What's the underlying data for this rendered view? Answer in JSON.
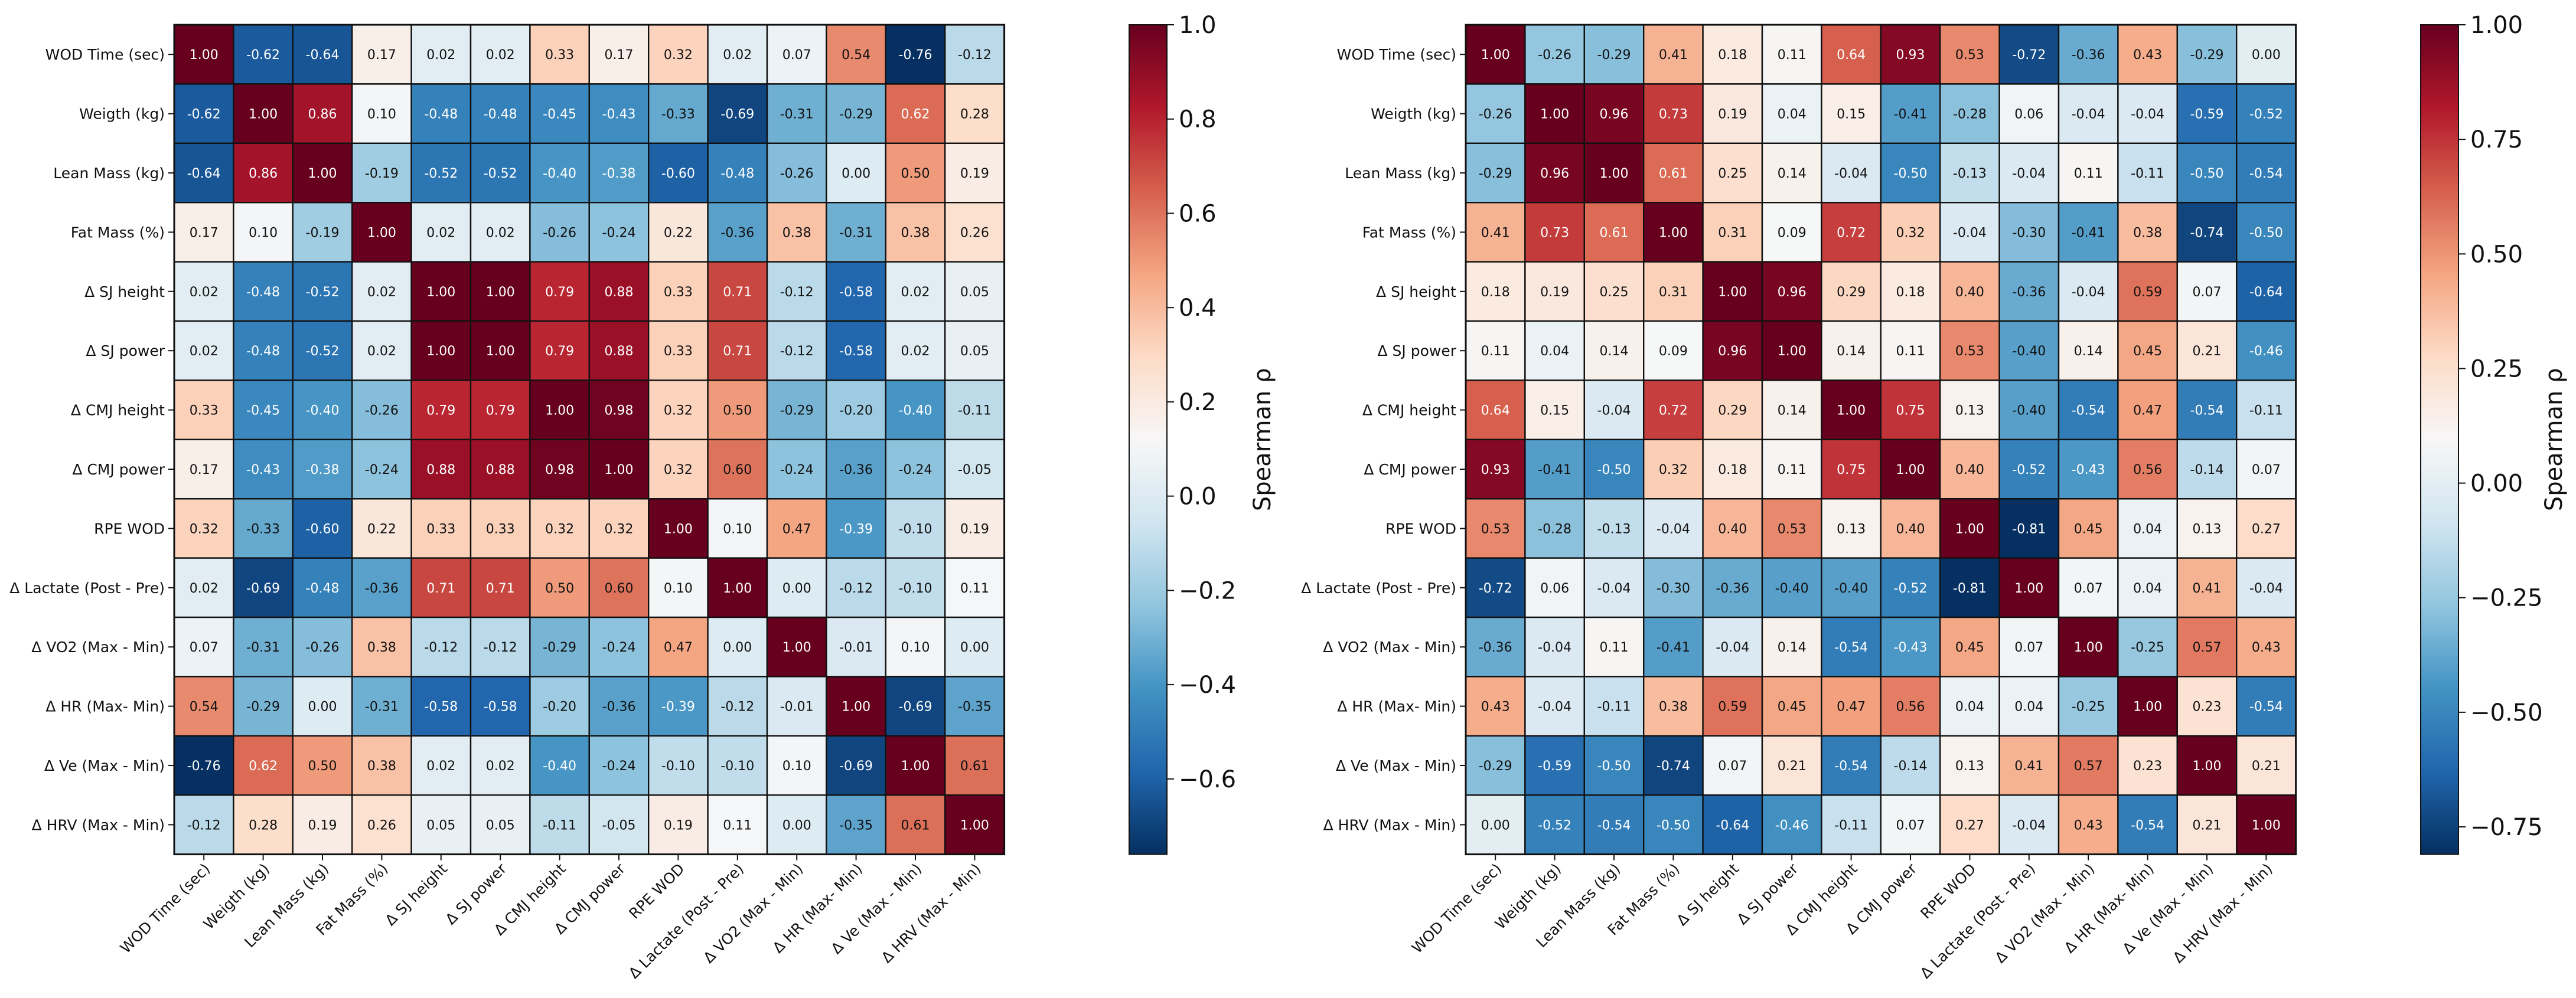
{
  "chart_data": [
    {
      "type": "heatmap",
      "title": "",
      "colorbar_label": "Spearman ρ",
      "colorbar_ticks": [
        "1.0",
        "0.8",
        "0.6",
        "0.4",
        "0.2",
        "0.0",
        "−0.2",
        "−0.4",
        "−0.6"
      ],
      "colorbar_range": [
        -0.76,
        1.0
      ],
      "labels": [
        "WOD Time (sec)",
        "Weigth (kg)",
        "Lean Mass (kg)",
        "Fat Mass (%)",
        "Δ SJ height",
        "Δ SJ power",
        "Δ CMJ height",
        "Δ CMJ power",
        "RPE WOD",
        "Δ Lactate (Post - Pre)",
        "Δ VO2 (Max - Min)",
        "Δ HR (Max- Min)",
        "Δ Ve (Max - Min)",
        "Δ HRV (Max - Min)"
      ],
      "matrix": [
        [
          1.0,
          -0.62,
          -0.64,
          0.17,
          0.02,
          0.02,
          0.33,
          0.17,
          0.32,
          0.02,
          0.07,
          0.54,
          -0.76,
          -0.12
        ],
        [
          -0.62,
          1.0,
          0.86,
          0.1,
          -0.48,
          -0.48,
          -0.45,
          -0.43,
          -0.33,
          -0.69,
          -0.31,
          -0.29,
          0.62,
          0.28
        ],
        [
          -0.64,
          0.86,
          1.0,
          -0.19,
          -0.52,
          -0.52,
          -0.4,
          -0.38,
          -0.6,
          -0.48,
          -0.26,
          0.0,
          0.5,
          0.19
        ],
        [
          0.17,
          0.1,
          -0.19,
          1.0,
          0.02,
          0.02,
          -0.26,
          -0.24,
          0.22,
          -0.36,
          0.38,
          -0.31,
          0.38,
          0.26
        ],
        [
          0.02,
          -0.48,
          -0.52,
          0.02,
          1.0,
          1.0,
          0.79,
          0.88,
          0.33,
          0.71,
          -0.12,
          -0.58,
          0.02,
          0.05
        ],
        [
          0.02,
          -0.48,
          -0.52,
          0.02,
          1.0,
          1.0,
          0.79,
          0.88,
          0.33,
          0.71,
          -0.12,
          -0.58,
          0.02,
          0.05
        ],
        [
          0.33,
          -0.45,
          -0.4,
          -0.26,
          0.79,
          0.79,
          1.0,
          0.98,
          0.32,
          0.5,
          -0.29,
          -0.2,
          -0.4,
          -0.11
        ],
        [
          0.17,
          -0.43,
          -0.38,
          -0.24,
          0.88,
          0.88,
          0.98,
          1.0,
          0.32,
          0.6,
          -0.24,
          -0.36,
          -0.24,
          -0.05
        ],
        [
          0.32,
          -0.33,
          -0.6,
          0.22,
          0.33,
          0.33,
          0.32,
          0.32,
          1.0,
          0.1,
          0.47,
          -0.39,
          -0.1,
          0.19
        ],
        [
          0.02,
          -0.69,
          -0.48,
          -0.36,
          0.71,
          0.71,
          0.5,
          0.6,
          0.1,
          1.0,
          0.0,
          -0.12,
          -0.1,
          0.11
        ],
        [
          0.07,
          -0.31,
          -0.26,
          0.38,
          -0.12,
          -0.12,
          -0.29,
          -0.24,
          0.47,
          0.0,
          1.0,
          -0.01,
          0.1,
          0.0
        ],
        [
          0.54,
          -0.29,
          0.0,
          -0.31,
          -0.58,
          -0.58,
          -0.2,
          -0.36,
          -0.39,
          -0.12,
          -0.01,
          1.0,
          -0.69,
          -0.35
        ],
        [
          -0.76,
          0.62,
          0.5,
          0.38,
          0.02,
          0.02,
          -0.4,
          -0.24,
          -0.1,
          -0.1,
          0.1,
          -0.69,
          1.0,
          0.61
        ],
        [
          -0.12,
          0.28,
          0.19,
          0.26,
          0.05,
          0.05,
          -0.11,
          -0.05,
          0.19,
          0.11,
          0.0,
          -0.35,
          0.61,
          1.0
        ]
      ]
    },
    {
      "type": "heatmap",
      "title": "",
      "colorbar_label": "Spearman ρ",
      "colorbar_ticks": [
        "1.00",
        "0.75",
        "0.50",
        "0.25",
        "0.00",
        "−0.25",
        "−0.50",
        "−0.75"
      ],
      "colorbar_range": [
        -0.81,
        1.0
      ],
      "labels": [
        "WOD Time (sec)",
        "Weigth (kg)",
        "Lean Mass (kg)",
        "Fat Mass (%)",
        "Δ SJ height",
        "Δ SJ power",
        "Δ CMJ height",
        "Δ CMJ power",
        "RPE WOD",
        "Δ Lactate (Post - Pre)",
        "Δ VO2 (Max - Min)",
        "Δ HR (Max- Min)",
        "Δ Ve (Max - Min)",
        "Δ HRV (Max - Min)"
      ],
      "matrix": [
        [
          1.0,
          -0.26,
          -0.29,
          0.41,
          0.18,
          0.11,
          0.64,
          0.93,
          0.53,
          -0.72,
          -0.36,
          0.43,
          -0.29,
          0.0
        ],
        [
          -0.26,
          1.0,
          0.96,
          0.73,
          0.19,
          0.04,
          0.15,
          -0.41,
          -0.28,
          0.06,
          -0.04,
          -0.04,
          -0.59,
          -0.52
        ],
        [
          -0.29,
          0.96,
          1.0,
          0.61,
          0.25,
          0.14,
          -0.04,
          -0.5,
          -0.13,
          -0.04,
          0.11,
          -0.11,
          -0.5,
          -0.54
        ],
        [
          0.41,
          0.73,
          0.61,
          1.0,
          0.31,
          0.09,
          0.72,
          0.32,
          -0.04,
          -0.3,
          -0.41,
          0.38,
          -0.74,
          -0.5
        ],
        [
          0.18,
          0.19,
          0.25,
          0.31,
          1.0,
          0.96,
          0.29,
          0.18,
          0.4,
          -0.36,
          -0.04,
          0.59,
          0.07,
          -0.64
        ],
        [
          0.11,
          0.04,
          0.14,
          0.09,
          0.96,
          1.0,
          0.14,
          0.11,
          0.53,
          -0.4,
          0.14,
          0.45,
          0.21,
          -0.46
        ],
        [
          0.64,
          0.15,
          -0.04,
          0.72,
          0.29,
          0.14,
          1.0,
          0.75,
          0.13,
          -0.4,
          -0.54,
          0.47,
          -0.54,
          -0.11
        ],
        [
          0.93,
          -0.41,
          -0.5,
          0.32,
          0.18,
          0.11,
          0.75,
          1.0,
          0.4,
          -0.52,
          -0.43,
          0.56,
          -0.14,
          0.07
        ],
        [
          0.53,
          -0.28,
          -0.13,
          -0.04,
          0.4,
          0.53,
          0.13,
          0.4,
          1.0,
          -0.81,
          0.45,
          0.04,
          0.13,
          0.27
        ],
        [
          -0.72,
          0.06,
          -0.04,
          -0.3,
          -0.36,
          -0.4,
          -0.4,
          -0.52,
          -0.81,
          1.0,
          0.07,
          0.04,
          0.41,
          -0.04
        ],
        [
          -0.36,
          -0.04,
          0.11,
          -0.41,
          -0.04,
          0.14,
          -0.54,
          -0.43,
          0.45,
          0.07,
          1.0,
          -0.25,
          0.57,
          0.43
        ],
        [
          0.43,
          -0.04,
          -0.11,
          0.38,
          0.59,
          0.45,
          0.47,
          0.56,
          0.04,
          0.04,
          -0.25,
          1.0,
          0.23,
          -0.54
        ],
        [
          -0.29,
          -0.59,
          -0.5,
          -0.74,
          0.07,
          0.21,
          -0.54,
          -0.14,
          0.13,
          0.41,
          0.57,
          0.23,
          1.0,
          0.21
        ],
        [
          0.0,
          -0.52,
          -0.54,
          -0.5,
          -0.64,
          -0.46,
          -0.11,
          0.07,
          0.27,
          -0.04,
          0.43,
          -0.54,
          0.21,
          1.0
        ]
      ]
    }
  ]
}
